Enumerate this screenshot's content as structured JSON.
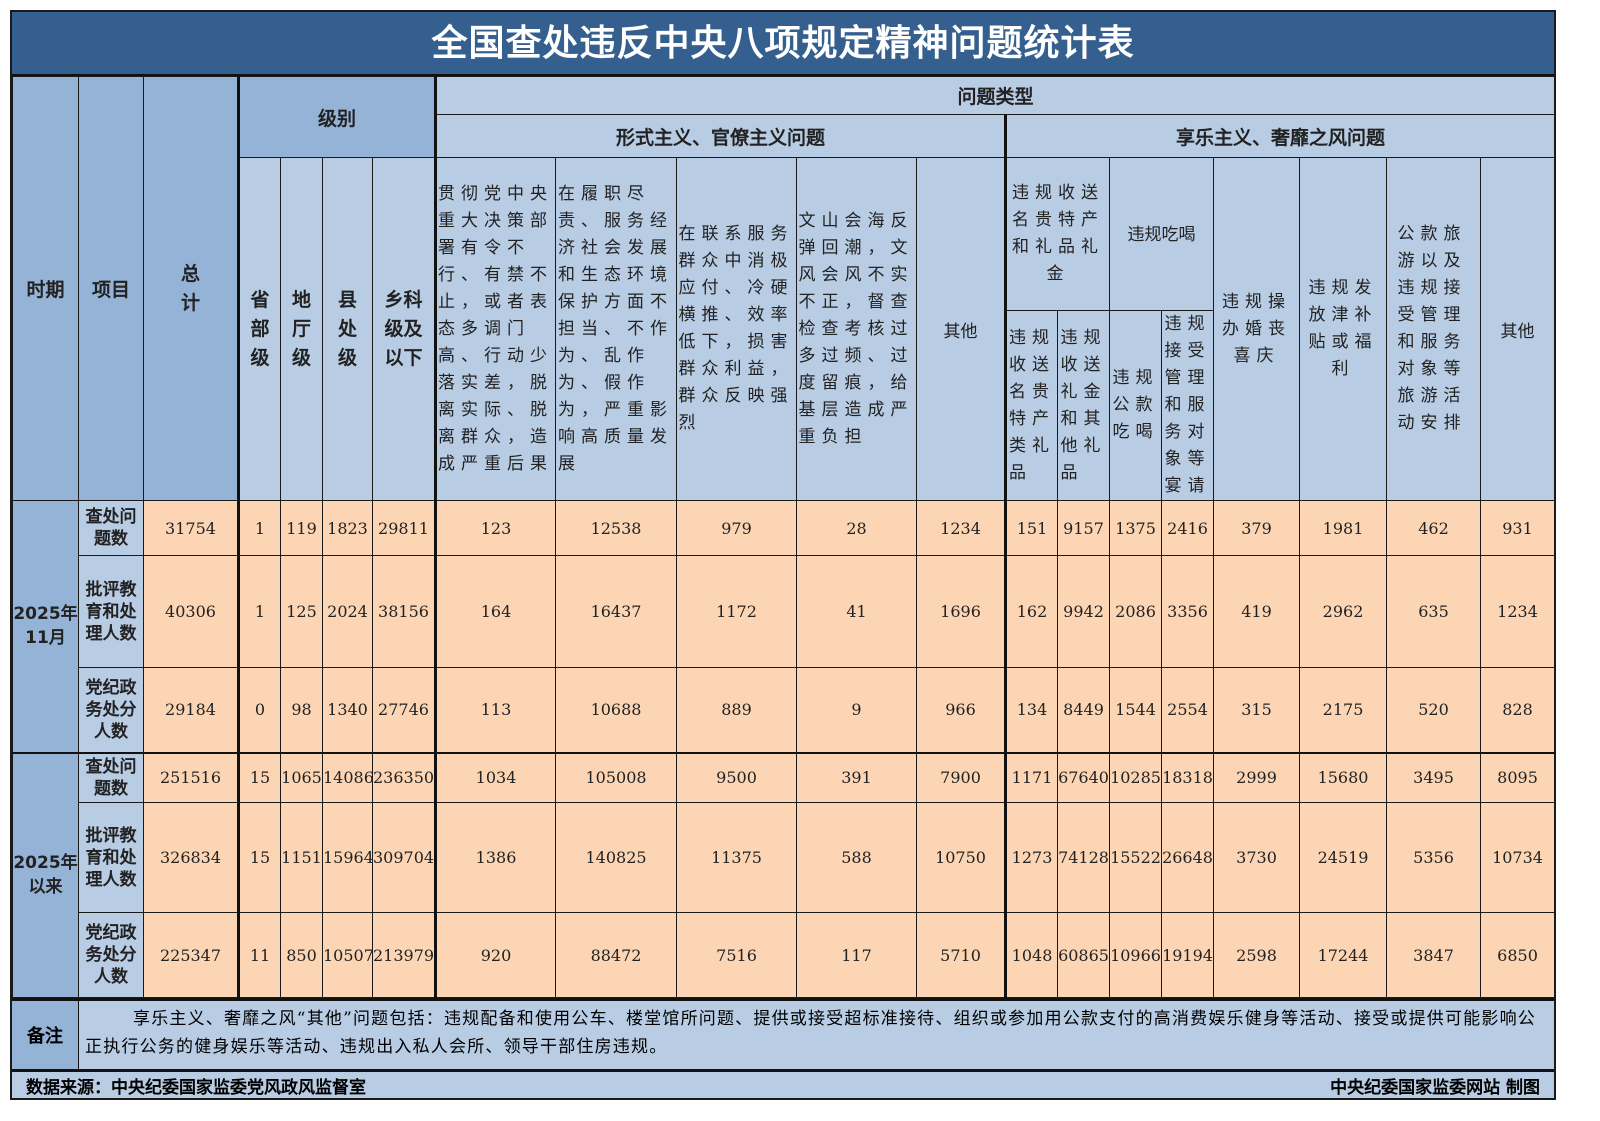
{
  "title": "全国查处违反中央八项规定精神问题统计表",
  "header": {
    "period": "时期",
    "item": "项目",
    "total": "总计",
    "level": "级别",
    "levels": [
      "省部级",
      "地厅级",
      "县处级",
      "乡科级及以下"
    ],
    "problem_type": "问题类型",
    "formalism": "形式主义、官僚主义问题",
    "hedonism": "享乐主义、奢靡之风问题",
    "formalism_cols": [
      "贯彻党中央重大决策部署有令不行、有禁不止，或者表态多调门高、行动少落实差，脱离实际、脱离群众，造成严重后果",
      "在履职尽责、服务经济社会发展和生态环境保护方面不担当、不作为、乱作为、假作为，严重影响高质量发展",
      "在联系服务群众中消极应付、冷硬横推、效率低下，损害群众利益，群众反映强烈",
      "文山会海反弹回潮，文风会风不实不正，督查检查考核过多过频、过度留痕，给基层造成严重负担",
      "其他"
    ],
    "gifts_group": "违规收送名贵特产和礼品礼金",
    "gifts_cols": [
      "违规收送名贵特产类礼品",
      "违规收送礼金和其他礼品"
    ],
    "dining_group": "违规吃喝",
    "dining_cols": [
      "违规公款吃喝",
      "违规接受管理和服务对象等宴请"
    ],
    "hedonism_cols": [
      "违规操办婚丧喜庆",
      "违规发放津补贴或福利",
      "公款旅游以及违规接受管理和服务对象等旅游活动安排",
      "其他"
    ]
  },
  "periods": [
    {
      "label": "2025年11月",
      "rows": [
        {
          "item": "查处问题数",
          "values": [
            "31754",
            "1",
            "119",
            "1823",
            "29811",
            "123",
            "12538",
            "979",
            "28",
            "1234",
            "151",
            "9157",
            "1375",
            "2416",
            "379",
            "1981",
            "462",
            "931"
          ]
        },
        {
          "item": "批评教育和处理人数",
          "values": [
            "40306",
            "1",
            "125",
            "2024",
            "38156",
            "164",
            "16437",
            "1172",
            "41",
            "1696",
            "162",
            "9942",
            "2086",
            "3356",
            "419",
            "2962",
            "635",
            "1234"
          ]
        },
        {
          "item": "党纪政务处分人数",
          "values": [
            "29184",
            "0",
            "98",
            "1340",
            "27746",
            "113",
            "10688",
            "889",
            "9",
            "966",
            "134",
            "8449",
            "1544",
            "2554",
            "315",
            "2175",
            "520",
            "828"
          ]
        }
      ]
    },
    {
      "label": "2025年以来",
      "rows": [
        {
          "item": "查处问题数",
          "values": [
            "251516",
            "15",
            "1065",
            "14086",
            "236350",
            "1034",
            "105008",
            "9500",
            "391",
            "7900",
            "1171",
            "67640",
            "10285",
            "18318",
            "2999",
            "15680",
            "3495",
            "8095"
          ]
        },
        {
          "item": "批评教育和处理人数",
          "values": [
            "326834",
            "15",
            "1151",
            "15964",
            "309704",
            "1386",
            "140825",
            "11375",
            "588",
            "10750",
            "1273",
            "74128",
            "15522",
            "26648",
            "3730",
            "24519",
            "5356",
            "10734"
          ]
        },
        {
          "item": "党纪政务处分人数",
          "values": [
            "225347",
            "11",
            "850",
            "10507",
            "213979",
            "920",
            "88472",
            "7516",
            "117",
            "5710",
            "1048",
            "60865",
            "10966",
            "19194",
            "2598",
            "17244",
            "3847",
            "6850"
          ]
        }
      ]
    }
  ],
  "note": {
    "label": "备注",
    "text": "享乐主义、奢靡之风“其他”问题包括：违规配备和使用公车、楼堂馆所问题、提供或接受超标准接待、组织或参加用公款支付的高消费娱乐健身等活动、接受或提供可能影响公正执行公务的健身娱乐等活动、违规出入私人会所、领导干部住房违规。"
  },
  "footer": {
    "source": "数据来源：中央纪委国家监委党风政风监督室",
    "credit": "中央纪委国家监委网站 制图"
  },
  "colors": {
    "title_bg": "#355f8f",
    "header_dark": "#95b3d7",
    "header_light": "#b8cce4",
    "data_bg": "#fcd5b4"
  }
}
